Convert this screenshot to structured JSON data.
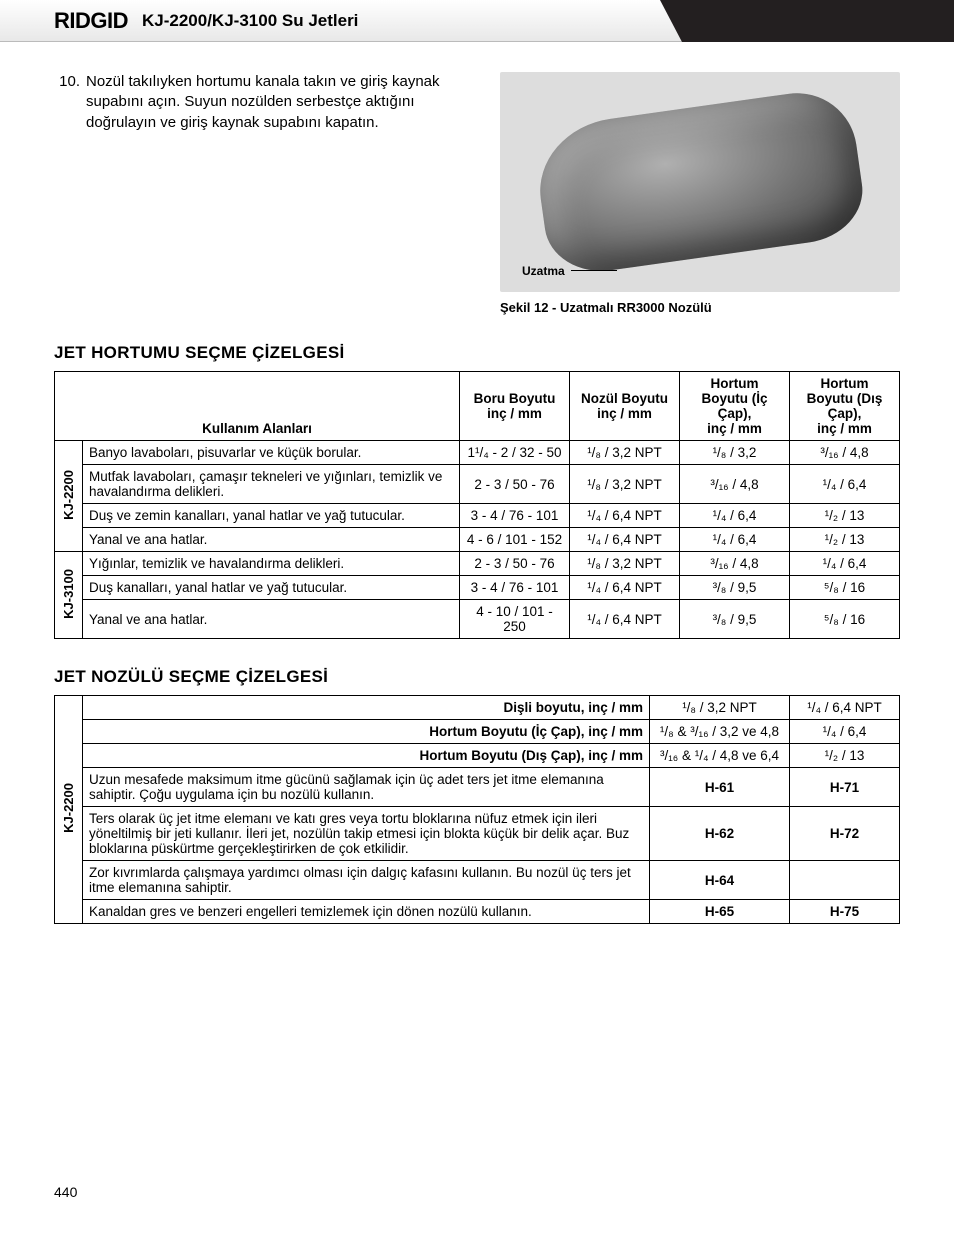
{
  "header": {
    "logo": "RIDGID",
    "title": "KJ-2200/KJ-3100 Su Jetleri"
  },
  "instruction": {
    "num": "10.",
    "text": "Nozül takılıyken hortumu kanala takın ve giriş kaynak supabını açın. Suyun nozülden serbestçe aktığını doğrulayın ve giriş kaynak supabını kapatın."
  },
  "figure": {
    "label": "Uzatma",
    "caption": "Şekil 12 - Uzatmalı RR3000 Nozülü"
  },
  "hose": {
    "title": "JET HORTUMU SEÇME ÇİZELGESİ",
    "headers": {
      "app": "Kullanım Alanları",
      "pipe": [
        "Boru Boyutu",
        "inç / mm"
      ],
      "nozzle": [
        "Nozül Boyutu",
        "inç / mm"
      ],
      "id": [
        "Hortum Boyutu (İç Çap),",
        "inç / mm"
      ],
      "od": [
        "Hortum Boyutu (Dış Çap),",
        "inç / mm"
      ]
    },
    "groups": [
      {
        "label": "KJ-2200",
        "rows": [
          {
            "app": "Banyo lavaboları, pisuvarlar ve küçük borular.",
            "pipe": "1¹/₄ - 2 / 32 - 50",
            "noz": "¹/₈ / 3,2 NPT",
            "id": "¹/₈ / 3,2",
            "od": "³/₁₆ / 4,8"
          },
          {
            "app": "Mutfak lavaboları, çamaşır tekneleri ve yığınları, temizlik ve havalandırma delikleri.",
            "pipe": "2 - 3 / 50 - 76",
            "noz": "¹/₈ / 3,2 NPT",
            "id": "³/₁₆ / 4,8",
            "od": "¹/₄ / 6,4"
          },
          {
            "app": "Duş ve zemin kanalları, yanal hatlar ve yağ tutucular.",
            "pipe": "3 - 4 / 76 - 101",
            "noz": "¹/₄ / 6,4 NPT",
            "id": "¹/₄ / 6,4",
            "od": "¹/₂ / 13"
          },
          {
            "app": "Yanal ve ana hatlar.",
            "pipe": "4 - 6 / 101 - 152",
            "noz": "¹/₄ / 6,4 NPT",
            "id": "¹/₄ / 6,4",
            "od": "¹/₂ / 13"
          }
        ]
      },
      {
        "label": "KJ-3100",
        "rows": [
          {
            "app": "Yığınlar, temizlik ve havalandırma delikleri.",
            "pipe": "2 - 3 / 50 - 76",
            "noz": "¹/₈ / 3,2 NPT",
            "id": "³/₁₆ / 4,8",
            "od": "¹/₄ / 6,4"
          },
          {
            "app": "Duş kanalları, yanal hatlar ve yağ tutucular.",
            "pipe": "3 - 4 / 76 - 101",
            "noz": "¹/₄ / 6,4 NPT",
            "id": "³/₈ / 9,5",
            "od": "⁵/₈ / 16"
          },
          {
            "app": "Yanal ve ana hatlar.",
            "pipe": "4 - 10 / 101 - 250",
            "noz": "¹/₄ / 6,4 NPT",
            "id": "³/₈ / 9,5",
            "od": "⁵/₈ / 16"
          }
        ]
      }
    ]
  },
  "nozzle": {
    "title": "JET NOZÜLÜ SEÇME ÇİZELGESİ",
    "group": "KJ-2200",
    "headerRows": [
      {
        "label": "Dişli boyutu, inç / mm",
        "c1": "¹/₈ / 3,2 NPT",
        "c2": "¹/₄ / 6,4 NPT"
      },
      {
        "label": "Hortum Boyutu (İç Çap), inç / mm",
        "c1": "¹/₈ & ³/₁₆ / 3,2 ve 4,8",
        "c2": "¹/₄ / 6,4"
      },
      {
        "label": "Hortum Boyutu (Dış Çap), inç / mm",
        "c1": "³/₁₆ & ¹/₄ / 4,8 ve 6,4",
        "c2": "¹/₂ / 13"
      }
    ],
    "rows": [
      {
        "app": "Uzun mesafede maksimum itme gücünü sağlamak için üç adet ters jet itme elemanına sahiptir. Çoğu uygulama için bu nozülü kullanın.",
        "c1": "H-61",
        "c2": "H-71"
      },
      {
        "app": "Ters olarak üç jet itme elemanı ve katı gres veya tortu bloklarına nüfuz etmek için ileri yöneltilmiş bir jeti kullanır. İleri jet, nozülün takip etmesi için blokta küçük bir delik açar. Buz bloklarına püskürtme gerçekleştirirken de çok etkilidir.",
        "c1": "H-62",
        "c2": "H-72"
      },
      {
        "app": "Zor kıvrımlarda çalışmaya yardımcı olması için dalgıç kafasını kullanın. Bu nozül üç ters jet itme elemanına sahiptir.",
        "c1": "H-64",
        "c2": ""
      },
      {
        "app": "Kanaldan gres ve benzeri engelleri temizlemek için dönen nozülü kullanın.",
        "c1": "H-65",
        "c2": "H-75"
      }
    ]
  },
  "pageNumber": "440"
}
